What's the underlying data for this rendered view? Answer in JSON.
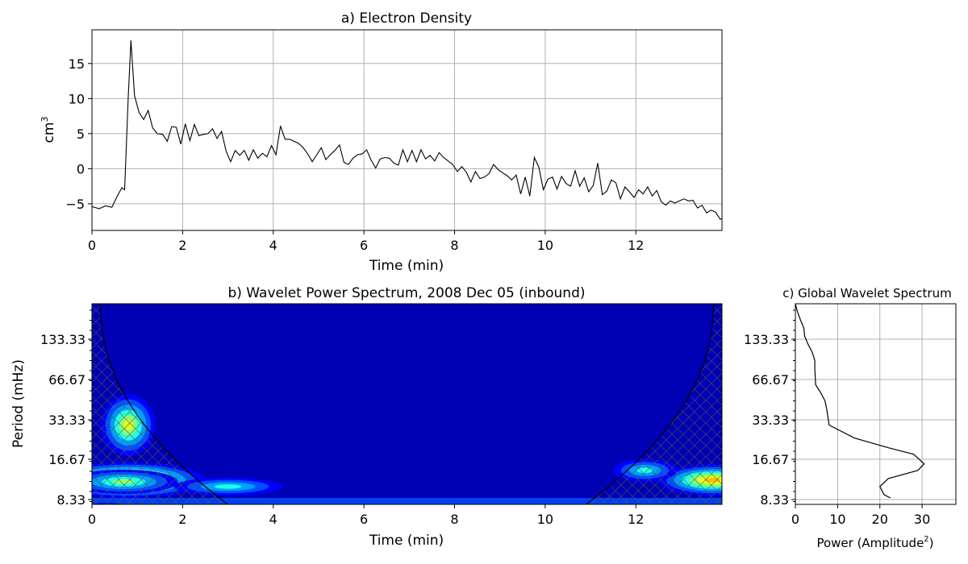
{
  "chart_data": [
    {
      "type": "line",
      "title": "a) Electron Density",
      "xlabel": "Time (min)",
      "ylabel_base": "cm",
      "ylabel_sup": "3",
      "xlim": [
        0,
        13.9
      ],
      "ylim": [
        -8.8,
        19.8
      ],
      "xticks": [
        0,
        2,
        4,
        6,
        8,
        10,
        12
      ],
      "yticks": [
        -5,
        0,
        5,
        10,
        15
      ],
      "grid": true,
      "series": [
        {
          "color": "#000000",
          "x": [
            0,
            0.16,
            0.3,
            0.44,
            0.56,
            0.66,
            0.72,
            0.8,
            0.86,
            0.94,
            1.04,
            1.14,
            1.24,
            1.34,
            1.44,
            1.56,
            1.66,
            1.76,
            1.86,
            1.96,
            2.06,
            2.16,
            2.26,
            2.36,
            2.46,
            2.56,
            2.66,
            2.76,
            2.86,
            2.96,
            3.06,
            3.16,
            3.26,
            3.36,
            3.46,
            3.56,
            3.66,
            3.76,
            3.86,
            3.96,
            4.06,
            4.16,
            4.26,
            4.36,
            4.46,
            4.56,
            4.66,
            4.76,
            4.86,
            4.96,
            5.06,
            5.16,
            5.26,
            5.36,
            5.46,
            5.56,
            5.66,
            5.76,
            5.86,
            5.96,
            6.06,
            6.16,
            6.26,
            6.36,
            6.46,
            6.56,
            6.66,
            6.76,
            6.86,
            6.96,
            7.06,
            7.16,
            7.26,
            7.36,
            7.46,
            7.56,
            7.66,
            7.76,
            7.86,
            7.96,
            8.06,
            8.16,
            8.26,
            8.36,
            8.46,
            8.56,
            8.66,
            8.76,
            8.86,
            8.96,
            9.06,
            9.16,
            9.26,
            9.36,
            9.46,
            9.56,
            9.66,
            9.76,
            9.86,
            9.96,
            10.06,
            10.16,
            10.26,
            10.36,
            10.46,
            10.56,
            10.66,
            10.76,
            10.86,
            10.96,
            11.06,
            11.16,
            11.26,
            11.36,
            11.46,
            11.56,
            11.66,
            11.76,
            11.86,
            11.96,
            12.06,
            12.16,
            12.26,
            12.36,
            12.46,
            12.56,
            12.66,
            12.76,
            12.86,
            12.96,
            13.06,
            13.16,
            13.26,
            13.36,
            13.46,
            13.56,
            13.66,
            13.76,
            13.86,
            13.9
          ],
          "y": [
            -5.4,
            -5.7,
            -5.3,
            -5.5,
            -3.9,
            -2.7,
            -3.0,
            10.0,
            18.3,
            10.4,
            8.0,
            7.0,
            8.3,
            5.8,
            5.0,
            4.9,
            3.9,
            6.0,
            5.9,
            3.5,
            6.4,
            4.0,
            6.3,
            4.7,
            4.9,
            5.0,
            5.7,
            4.3,
            5.3,
            2.5,
            1.0,
            2.6,
            1.9,
            2.6,
            1.2,
            2.7,
            1.5,
            2.2,
            1.7,
            3.3,
            2.0,
            6.1,
            4.2,
            4.2,
            3.9,
            3.6,
            3.0,
            2.1,
            1.0,
            2.0,
            3.0,
            1.3,
            2.0,
            2.6,
            3.4,
            0.9,
            0.6,
            1.5,
            2.0,
            2.1,
            2.7,
            1.2,
            0.1,
            1.4,
            1.6,
            1.5,
            0.8,
            0.5,
            2.7,
            1.0,
            2.6,
            1.0,
            2.7,
            1.4,
            1.9,
            1.1,
            2.3,
            1.6,
            1.1,
            0.6,
            -0.4,
            0.3,
            -0.5,
            -1.9,
            -0.4,
            -1.4,
            -1.2,
            -0.7,
            0.6,
            -0.1,
            -0.6,
            -1.0,
            -1.6,
            -0.9,
            -3.6,
            -1.2,
            -3.9,
            1.6,
            0.2,
            -3.0,
            -1.5,
            -1.2,
            -2.9,
            -1.1,
            -2.1,
            -2.5,
            -0.3,
            -2.5,
            -1.3,
            -3.3,
            -2.4,
            0.8,
            -3.7,
            -3.2,
            -1.6,
            -2.0,
            -4.3,
            -2.6,
            -3.3,
            -4.1,
            -3.0,
            -3.6,
            -2.6,
            -3.9,
            -3.1,
            -4.7,
            -5.2,
            -4.6,
            -4.9,
            -4.6,
            -4.3,
            -4.6,
            -4.5,
            -5.6,
            -5.2,
            -6.3,
            -5.9,
            -6.2,
            -7.2,
            -7.1
          ]
        }
      ]
    },
    {
      "type": "heatmap",
      "title": "b) Wavelet Power Spectrum, 2008 Dec 05 (inbound)",
      "xlabel": "Time (min)",
      "ylabel": "Period (mHz)",
      "xlim": [
        0,
        13.9
      ],
      "xticks": [
        0,
        2,
        4,
        6,
        8,
        10,
        12
      ],
      "yticks": [
        "133.33",
        "66.67",
        "33.33",
        "16.67",
        "8.33"
      ],
      "colormap": "jet",
      "hatched_regions": [
        "left cone of influence",
        "right cone of influence"
      ],
      "blobs": [
        {
          "x": 0.8,
          "band": 10.9,
          "w": 1.7,
          "h": 1.1,
          "level": 0.58
        },
        {
          "x": 0.7,
          "band": 11.0,
          "w": 1.2,
          "h": 0.75,
          "level": 0.36
        },
        {
          "x": 0.8,
          "band": 7.5,
          "w": 0.6,
          "h": 1.9,
          "level": 0.42
        },
        {
          "x": 3.0,
          "band": 11.3,
          "w": 1.2,
          "h": 0.55,
          "level": 0.3
        },
        {
          "x": 13.7,
          "band": 10.9,
          "w": 1.2,
          "h": 0.95,
          "level": 0.5
        },
        {
          "x": 12.2,
          "band": 10.3,
          "w": 0.7,
          "h": 0.7,
          "level": 0.28
        },
        {
          "x": 0.3,
          "band": 13.0,
          "w": 0.8,
          "h": 0.7,
          "level": 0.55
        }
      ]
    },
    {
      "type": "line",
      "title": "c) Global Wavelet Spectrum",
      "xlabel_base": "Power (Amplitude",
      "xlabel_sup": "2",
      "xlabel_end": ")",
      "xlim": [
        0,
        38
      ],
      "xticks": [
        0,
        10,
        20,
        30
      ],
      "yticks": [
        "133.33",
        "66.67",
        "33.33",
        "16.67",
        "8.33"
      ],
      "grid": true,
      "series": [
        {
          "color": "#000000",
          "power": [
            0,
            0.5,
            1.2,
            2,
            2.2,
            3,
            4,
            4.6,
            4.6,
            4.8,
            6,
            7,
            7.4,
            8,
            14,
            22,
            28,
            30.5,
            29,
            22,
            20,
            21,
            22.5
          ],
          "band": [
            0,
            0.5,
            1,
            1.5,
            2,
            2.5,
            3,
            3.5,
            4,
            5,
            5.5,
            6,
            6.5,
            7.5,
            8.3,
            8.9,
            9.3,
            9.9,
            10.3,
            10.8,
            11.3,
            11.8,
            12.0
          ]
        }
      ]
    }
  ]
}
